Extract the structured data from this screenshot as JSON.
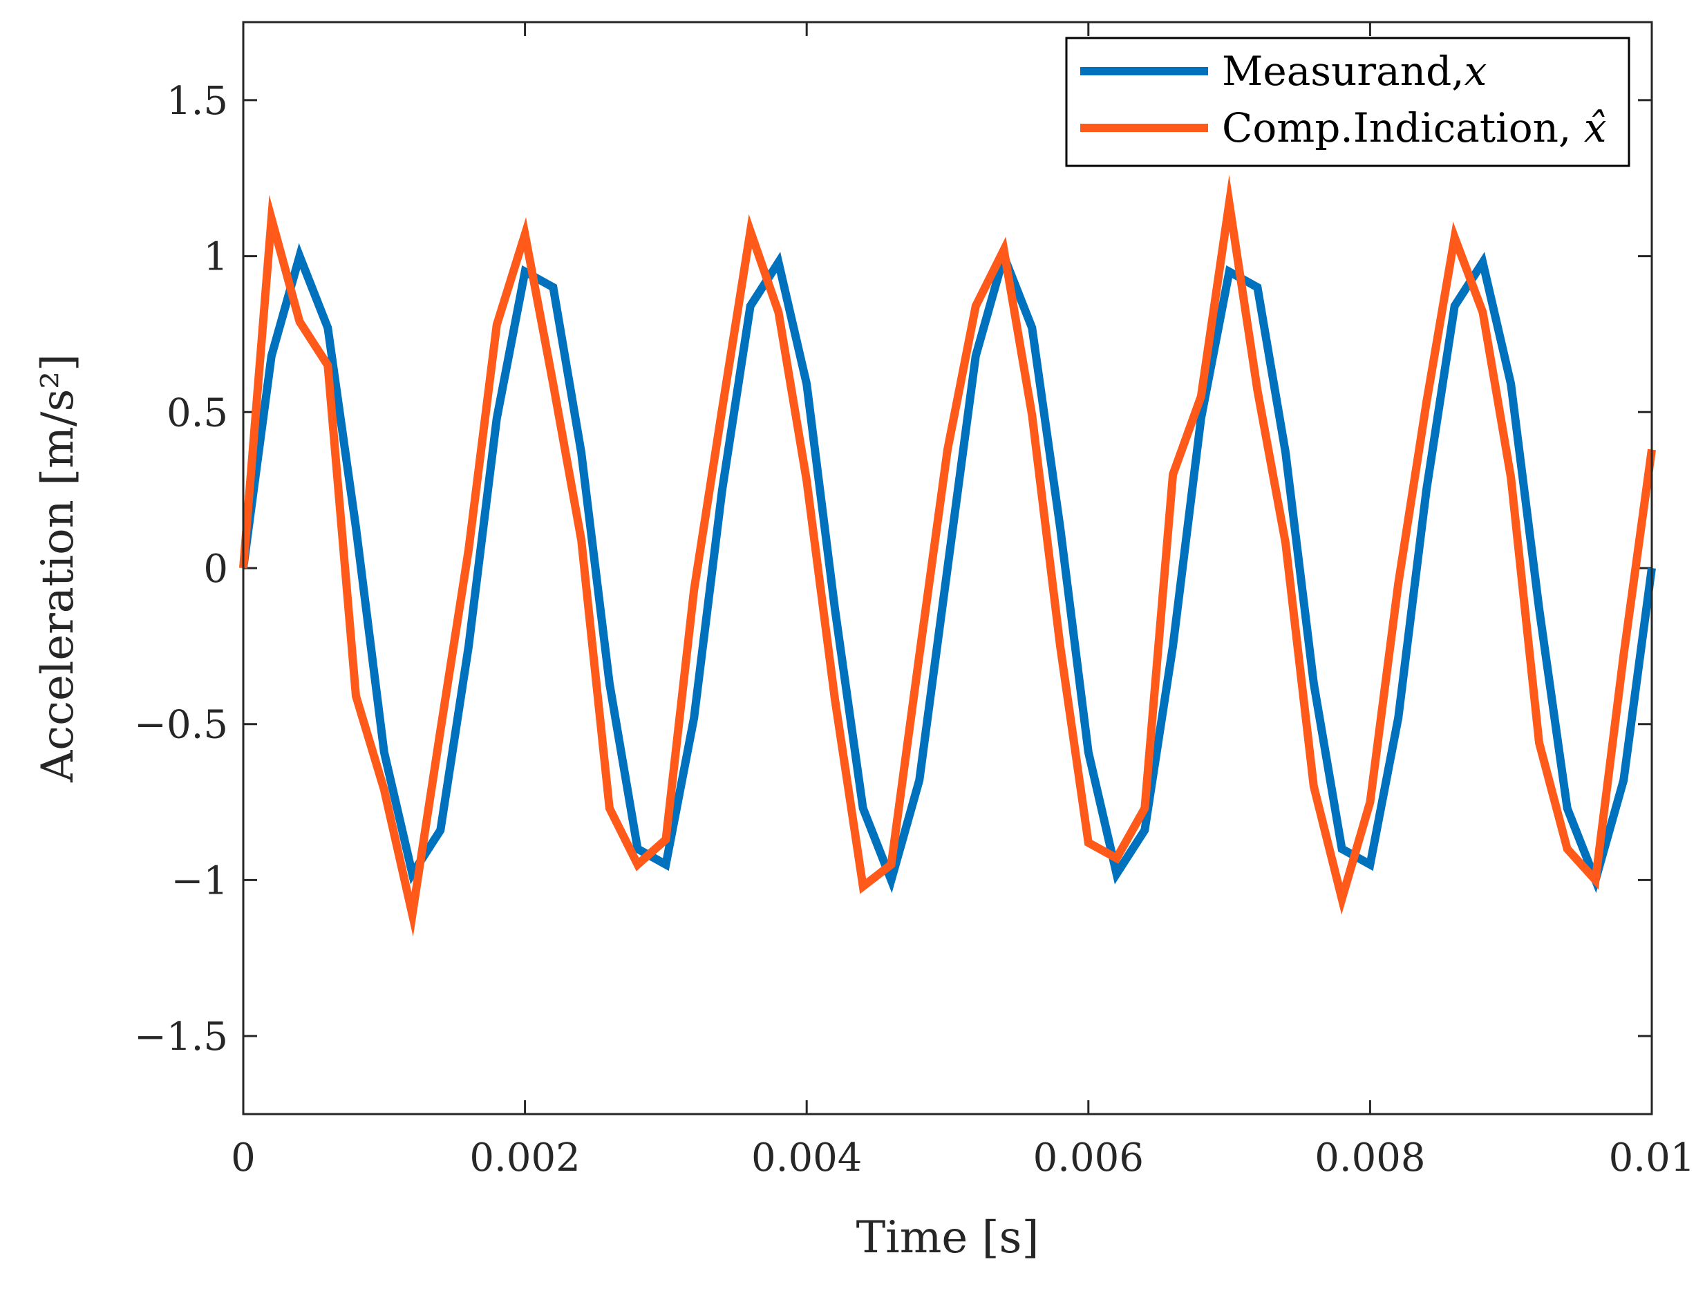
{
  "chart_data": {
    "type": "line",
    "title": "",
    "xlabel": "Time [s]",
    "ylabel": "Acceleration [m/s²]",
    "xlim": [
      0,
      0.01
    ],
    "ylim": [
      -1.75,
      1.75
    ],
    "grid": false,
    "legend_position": "top-right",
    "xticks": [
      {
        "value": 0,
        "label": "0"
      },
      {
        "value": 0.002,
        "label": "0.002"
      },
      {
        "value": 0.004,
        "label": "0.004"
      },
      {
        "value": 0.006,
        "label": "0.006"
      },
      {
        "value": 0.008,
        "label": "0.008"
      },
      {
        "value": 0.01,
        "label": "0.01"
      }
    ],
    "yticks": [
      {
        "value": -1.5,
        "label": "−1.5"
      },
      {
        "value": -1,
        "label": "−1"
      },
      {
        "value": -0.5,
        "label": "−0.5"
      },
      {
        "value": 0,
        "label": "0"
      },
      {
        "value": 0.5,
        "label": "0.5"
      },
      {
        "value": 1,
        "label": "1"
      },
      {
        "value": 1.5,
        "label": "1.5"
      }
    ],
    "x": [
      0,
      0.0002,
      0.0004,
      0.0006,
      0.0008,
      0.001,
      0.0012,
      0.0014,
      0.0016,
      0.0018,
      0.002,
      0.0022,
      0.0024,
      0.0026,
      0.0028,
      0.003,
      0.0032,
      0.0034,
      0.0036,
      0.0038,
      0.004,
      0.0042,
      0.0044,
      0.0046,
      0.0048,
      0.005,
      0.0052,
      0.0054,
      0.0056,
      0.0058,
      0.006,
      0.0062,
      0.0064,
      0.0066,
      0.0068,
      0.007,
      0.0072,
      0.0074,
      0.0076,
      0.0078,
      0.008,
      0.0082,
      0.0084,
      0.0086,
      0.0088,
      0.009,
      0.0092,
      0.0094,
      0.0096,
      0.0098,
      0.01
    ],
    "series": [
      {
        "name": "Measurand,",
        "symbol": "x",
        "color": "#0072BD",
        "values": [
          0,
          0.68,
          1.0,
          0.77,
          0.13,
          -0.59,
          -0.98,
          -0.84,
          -0.25,
          0.48,
          0.95,
          0.9,
          0.37,
          -0.37,
          -0.9,
          -0.95,
          -0.48,
          0.25,
          0.84,
          0.98,
          0.59,
          -0.13,
          -0.77,
          -1.0,
          -0.68,
          0,
          0.68,
          1.0,
          0.77,
          0.13,
          -0.59,
          -0.98,
          -0.84,
          -0.25,
          0.48,
          0.95,
          0.9,
          0.37,
          -0.37,
          -0.9,
          -0.95,
          -0.48,
          0.25,
          0.84,
          0.98,
          0.59,
          -0.13,
          -0.77,
          -1.0,
          -0.68,
          0
        ]
      },
      {
        "name": "Comp.Indication, ",
        "symbol": "x̂",
        "color": "#FF5A1A",
        "values": [
          0,
          1.12,
          0.79,
          0.65,
          -0.41,
          -0.71,
          -1.11,
          -0.52,
          0.06,
          0.78,
          1.07,
          0.59,
          0.09,
          -0.77,
          -0.95,
          -0.87,
          -0.07,
          0.51,
          1.08,
          0.82,
          0.28,
          -0.42,
          -1.02,
          -0.95,
          -0.28,
          0.38,
          0.84,
          1.02,
          0.49,
          -0.25,
          -0.88,
          -0.93,
          -0.77,
          0.3,
          0.55,
          1.17,
          0.57,
          0.08,
          -0.7,
          -1.06,
          -0.75,
          -0.05,
          0.53,
          1.06,
          0.82,
          0.29,
          -0.56,
          -0.9,
          -1.0,
          -0.28,
          0.38
        ]
      }
    ]
  }
}
